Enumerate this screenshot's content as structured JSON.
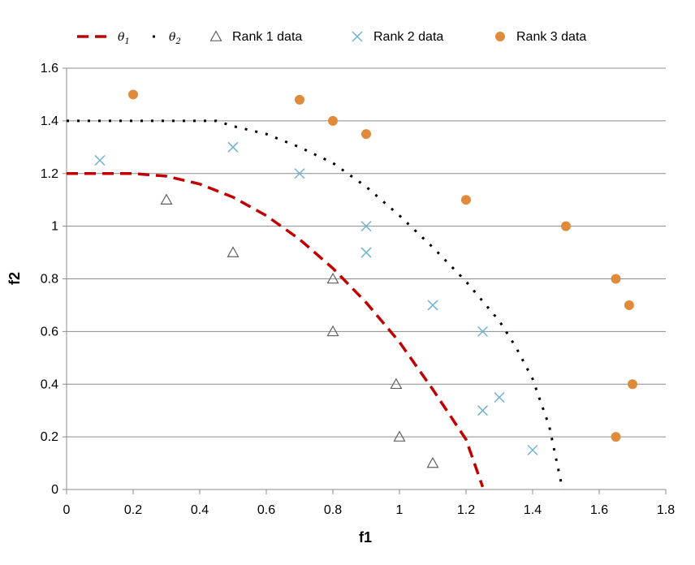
{
  "chart_data": {
    "type": "scatter",
    "xlabel": "f1",
    "ylabel": "f2",
    "xlim": [
      0,
      1.8
    ],
    "ylim": [
      0,
      1.6
    ],
    "xticks": [
      "0",
      "0.2",
      "0.4",
      "0.6",
      "0.8",
      "1",
      "1.2",
      "1.4",
      "1.6",
      "1.8"
    ],
    "yticks": [
      "0",
      "0.2",
      "0.4",
      "0.6",
      "0.8",
      "1",
      "1.2",
      "1.4",
      "1.6"
    ],
    "grid": "horizontal",
    "legend_position": "top",
    "series": [
      {
        "name": "θ1",
        "kind": "dashed-line",
        "color": "#c00000",
        "x": [
          0,
          0.1,
          0.2,
          0.3,
          0.4,
          0.5,
          0.6,
          0.7,
          0.8,
          0.9,
          1.0,
          1.1,
          1.2,
          1.25
        ],
        "y": [
          1.2,
          1.2,
          1.2,
          1.19,
          1.16,
          1.11,
          1.04,
          0.95,
          0.84,
          0.71,
          0.56,
          0.38,
          0.19,
          0.01
        ]
      },
      {
        "name": "θ2",
        "kind": "dotted-line",
        "color": "#000000",
        "x": [
          0,
          0.1,
          0.2,
          0.3,
          0.4,
          0.45,
          0.5,
          0.6,
          0.7,
          0.8,
          0.9,
          1.0,
          1.1,
          1.2,
          1.3,
          1.35,
          1.4,
          1.45,
          1.49
        ],
        "y": [
          1.4,
          1.4,
          1.4,
          1.4,
          1.4,
          1.4,
          1.38,
          1.35,
          1.3,
          1.24,
          1.15,
          1.04,
          0.92,
          0.79,
          0.64,
          0.54,
          0.42,
          0.24,
          0.0
        ]
      },
      {
        "name": "Rank 1 data",
        "kind": "triangle",
        "color": "#606060",
        "x": [
          0.3,
          0.5,
          0.8,
          0.8,
          0.99,
          1.0,
          1.1
        ],
        "y": [
          1.1,
          0.9,
          0.8,
          0.6,
          0.4,
          0.2,
          0.1
        ]
      },
      {
        "name": "Rank 2 data",
        "kind": "cross",
        "color": "#6fb3d2",
        "x": [
          0.1,
          0.5,
          0.7,
          0.9,
          0.9,
          1.1,
          1.25,
          1.25,
          1.3,
          1.4
        ],
        "y": [
          1.25,
          1.3,
          1.2,
          1.0,
          0.9,
          0.7,
          0.6,
          0.3,
          0.35,
          0.15
        ]
      },
      {
        "name": "Rank 3 data",
        "kind": "circle",
        "color": "#e08a3c",
        "x": [
          0.2,
          0.7,
          0.8,
          0.9,
          1.2,
          1.5,
          1.65,
          1.69,
          1.7,
          1.65
        ],
        "y": [
          1.5,
          1.48,
          1.4,
          1.35,
          1.1,
          1.0,
          0.8,
          0.7,
          0.4,
          0.2
        ]
      }
    ]
  }
}
